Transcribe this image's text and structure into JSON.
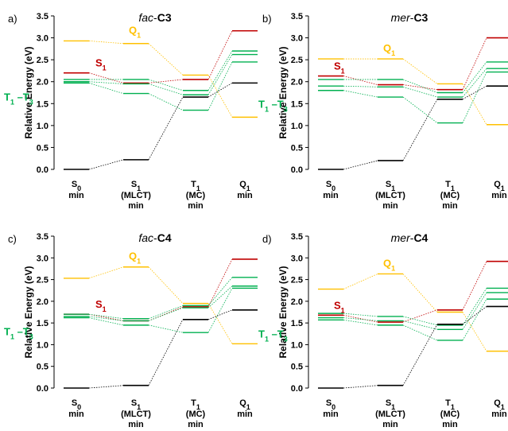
{
  "colors": {
    "S0": "#000000",
    "S1": "#c00000",
    "Q1": "#ffc000",
    "T": "#00b050",
    "T1T3_label": "#00b050",
    "S1_label": "#c00000",
    "Q1_label": "#ffc000"
  },
  "chart_data": [
    {
      "type": "line",
      "panel_label": "a)",
      "title_prefix": "fac",
      "title_suffix": "C3",
      "ylabel": "Relative Energy (eV)",
      "ylim": [
        0,
        3.5
      ],
      "yticks": [
        "0.0",
        "0.5",
        "1.0",
        "1.5",
        "2.0",
        "2.5",
        "3.0",
        "3.5"
      ],
      "categories": [
        {
          "main": "S",
          "sub": "0",
          "rest": [
            "min"
          ]
        },
        {
          "main": "S",
          "sub": "1",
          "rest": [
            "(MLCT)",
            "min"
          ]
        },
        {
          "main": "T",
          "sub": "1",
          "rest": [
            "(MC)",
            "min"
          ]
        },
        {
          "main": "Q",
          "sub": "1",
          "rest": [
            "min"
          ]
        }
      ],
      "annotations": {
        "Q1": "Q",
        "Q1_sub": "1",
        "S1": "S",
        "S1_sub": "1",
        "T": "T",
        "T_sub1": "1",
        "T_mid": " –T",
        "T_sub3": "3"
      },
      "series": [
        {
          "key": "Q1",
          "values": [
            2.93,
            2.87,
            2.15,
            1.19
          ]
        },
        {
          "key": "S1",
          "values": [
            2.2,
            1.97,
            2.05,
            3.16
          ]
        },
        {
          "key": "T",
          "values": [
            2.05,
            2.05,
            1.8,
            2.7
          ]
        },
        {
          "key": "T",
          "values": [
            2.0,
            1.95,
            1.7,
            2.62
          ]
        },
        {
          "key": "T",
          "values": [
            1.97,
            1.73,
            1.35,
            2.45
          ]
        },
        {
          "key": "S0",
          "values": [
            0.0,
            0.22,
            1.65,
            1.97
          ]
        }
      ]
    },
    {
      "type": "line",
      "panel_label": "b)",
      "title_prefix": "mer",
      "title_suffix": "C3",
      "ylabel": "Relative Energy (eV)",
      "ylim": [
        0,
        3.5
      ],
      "yticks": [
        "0.0",
        "0.5",
        "1.0",
        "1.5",
        "2.0",
        "2.5",
        "3.0",
        "3.5"
      ],
      "categories": [
        {
          "main": "S",
          "sub": "0",
          "rest": [
            "min"
          ]
        },
        {
          "main": "S",
          "sub": "1",
          "rest": [
            "(MLCT)",
            "min"
          ]
        },
        {
          "main": "T",
          "sub": "1",
          "rest": [
            "(MC)",
            "min"
          ]
        },
        {
          "main": "Q",
          "sub": "1",
          "rest": [
            "min"
          ]
        }
      ],
      "annotations": {
        "Q1": "Q",
        "Q1_sub": "1",
        "S1": "S",
        "S1_sub": "1",
        "T": "T",
        "T_sub1": "1",
        "T_mid": " –T",
        "T_sub3": "3"
      },
      "series": [
        {
          "key": "Q1",
          "values": [
            2.52,
            2.52,
            1.95,
            1.02
          ]
        },
        {
          "key": "S1",
          "values": [
            2.13,
            1.93,
            1.82,
            3.0
          ]
        },
        {
          "key": "T",
          "values": [
            2.05,
            2.05,
            1.75,
            2.45
          ]
        },
        {
          "key": "T",
          "values": [
            1.9,
            1.88,
            1.65,
            2.3
          ]
        },
        {
          "key": "T",
          "values": [
            1.8,
            1.65,
            1.06,
            2.22
          ]
        },
        {
          "key": "S0",
          "values": [
            0.0,
            0.2,
            1.6,
            1.9
          ]
        }
      ]
    },
    {
      "type": "line",
      "panel_label": "c)",
      "title_prefix": "fac",
      "title_suffix": "C4",
      "ylabel": "Relative Energy (eV)",
      "ylim": [
        0,
        3.5
      ],
      "yticks": [
        "0.0",
        "0.5",
        "1.0",
        "1.5",
        "2.0",
        "2.5",
        "3.0",
        "3.5"
      ],
      "categories": [
        {
          "main": "S",
          "sub": "0",
          "rest": [
            "min"
          ]
        },
        {
          "main": "S",
          "sub": "1",
          "rest": [
            "(MLCT)",
            "min"
          ]
        },
        {
          "main": "T",
          "sub": "1",
          "rest": [
            "(MC)",
            "min"
          ]
        },
        {
          "main": "Q",
          "sub": "1",
          "rest": [
            "min"
          ]
        }
      ],
      "annotations": {
        "Q1": "Q",
        "Q1_sub": "1",
        "S1": "S",
        "S1_sub": "1",
        "T": "T",
        "T_sub1": "1",
        "T_mid": " –T",
        "T_sub3": "3"
      },
      "series": [
        {
          "key": "Q1",
          "values": [
            2.53,
            2.79,
            1.95,
            1.02
          ]
        },
        {
          "key": "S1",
          "values": [
            1.7,
            1.55,
            1.87,
            2.97
          ]
        },
        {
          "key": "T",
          "values": [
            1.7,
            1.6,
            1.9,
            2.55
          ]
        },
        {
          "key": "T",
          "values": [
            1.65,
            1.55,
            1.85,
            2.35
          ]
        },
        {
          "key": "T",
          "values": [
            1.62,
            1.45,
            1.28,
            2.3
          ]
        },
        {
          "key": "S0",
          "values": [
            0.0,
            0.06,
            1.58,
            1.8
          ]
        }
      ]
    },
    {
      "type": "line",
      "panel_label": "d)",
      "title_prefix": "mer",
      "title_suffix": "C4",
      "ylabel": "Relative Energy (eV)",
      "ylim": [
        0,
        3.5
      ],
      "yticks": [
        "0.0",
        "0.5",
        "1.0",
        "1.5",
        "2.0",
        "2.5",
        "3.0",
        "3.5"
      ],
      "categories": [
        {
          "main": "S",
          "sub": "0",
          "rest": [
            "min"
          ]
        },
        {
          "main": "S",
          "sub": "1",
          "rest": [
            "(MLCT)",
            "min"
          ]
        },
        {
          "main": "T",
          "sub": "1",
          "rest": [
            "(MC)",
            "min"
          ]
        },
        {
          "main": "Q",
          "sub": "1",
          "rest": [
            "min"
          ]
        }
      ],
      "annotations": {
        "Q1": "Q",
        "Q1_sub": "1",
        "S1": "S",
        "S1_sub": "1",
        "T": "T",
        "T_sub1": "1",
        "T_mid": " –T",
        "T_sub3": "3"
      },
      "series": [
        {
          "key": "Q1",
          "values": [
            2.28,
            2.63,
            1.75,
            0.85
          ]
        },
        {
          "key": "S1",
          "values": [
            1.68,
            1.52,
            1.8,
            2.92
          ]
        },
        {
          "key": "T",
          "values": [
            1.72,
            1.65,
            1.45,
            2.3
          ]
        },
        {
          "key": "T",
          "values": [
            1.62,
            1.55,
            1.35,
            2.2
          ]
        },
        {
          "key": "T",
          "values": [
            1.57,
            1.45,
            1.1,
            2.05
          ]
        },
        {
          "key": "S0",
          "values": [
            0.0,
            0.06,
            1.47,
            1.88
          ]
        }
      ]
    }
  ]
}
